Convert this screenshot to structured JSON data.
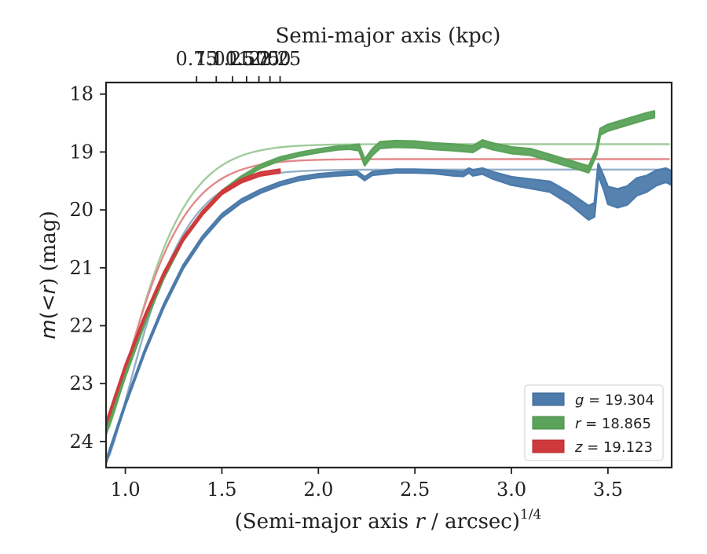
{
  "chart_data": {
    "type": "line",
    "xlabel_prefix": "(Semi-major axis ",
    "xlabel_var": "r",
    "xlabel_suffix": " / arcsec)",
    "xlabel_sup": "1/4",
    "ylabel_m": "m",
    "ylabel_mid": "(<",
    "ylabel_r": "r",
    "ylabel_end": ") (mag)",
    "top_xlabel": "Semi-major axis (kpc)",
    "xlim": [
      0.9,
      3.83
    ],
    "ylim": [
      24.45,
      17.8
    ],
    "x_ticks": [
      1.0,
      1.5,
      2.0,
      2.5,
      3.0,
      3.5
    ],
    "x_tick_labels": [
      "1.0",
      "1.5",
      "2.0",
      "2.5",
      "3.0",
      "3.5"
    ],
    "y_ticks": [
      18,
      19,
      20,
      21,
      22,
      23,
      24
    ],
    "y_tick_labels": [
      "18",
      "19",
      "20",
      "21",
      "22",
      "23",
      "24"
    ],
    "top_ticks": [
      0.75,
      1.0,
      1.25,
      1.5,
      1.75,
      2.0,
      2.25
    ],
    "top_tick_labels": [
      "0.75",
      "1.00",
      "1.25",
      "1.50",
      "1.75",
      "2.00",
      "2.25"
    ],
    "grid": false,
    "legend_position": "lower right",
    "series": [
      {
        "name": "g = 19.304",
        "band": "g",
        "value_text": " = 19.304",
        "color": "#4c7bab",
        "asymptote": 19.304,
        "fit_color": "#94afc8",
        "x": [
          0.9,
          1.0,
          1.1,
          1.2,
          1.3,
          1.4,
          1.5,
          1.6,
          1.7,
          1.8,
          1.9,
          2.0,
          2.1,
          2.2,
          2.24,
          2.28,
          2.4,
          2.5,
          2.6,
          2.7,
          2.75,
          2.78,
          2.8,
          2.85,
          2.9,
          3.0,
          3.1,
          3.2,
          3.3,
          3.4,
          3.43,
          3.45,
          3.48,
          3.5,
          3.55,
          3.6,
          3.65,
          3.7,
          3.75,
          3.8,
          3.83
        ],
        "y": [
          24.35,
          23.35,
          22.45,
          21.65,
          20.98,
          20.48,
          20.1,
          19.85,
          19.68,
          19.55,
          19.46,
          19.41,
          19.38,
          19.36,
          19.46,
          19.37,
          19.33,
          19.33,
          19.34,
          19.37,
          19.38,
          19.32,
          19.36,
          19.33,
          19.4,
          19.5,
          19.55,
          19.6,
          19.8,
          20.05,
          20.0,
          19.3,
          19.55,
          19.75,
          19.8,
          19.75,
          19.6,
          19.55,
          19.45,
          19.4,
          19.45
        ],
        "halfwidth": [
          0.03,
          0.03,
          0.03,
          0.03,
          0.03,
          0.03,
          0.03,
          0.03,
          0.03,
          0.03,
          0.03,
          0.03,
          0.03,
          0.03,
          0.03,
          0.03,
          0.03,
          0.03,
          0.03,
          0.04,
          0.04,
          0.04,
          0.05,
          0.05,
          0.06,
          0.07,
          0.08,
          0.09,
          0.1,
          0.12,
          0.12,
          0.1,
          0.12,
          0.15,
          0.16,
          0.16,
          0.15,
          0.14,
          0.13,
          0.12,
          0.12
        ]
      },
      {
        "name": "r = 18.865",
        "band": "r",
        "value_text": " = 18.865",
        "color": "#5ba35a",
        "asymptote": 18.865,
        "fit_color": "#a0cc9c",
        "x": [
          0.9,
          1.0,
          1.1,
          1.2,
          1.3,
          1.4,
          1.5,
          1.6,
          1.7,
          1.8,
          1.9,
          2.0,
          2.1,
          2.16,
          2.21,
          2.24,
          2.28,
          2.32,
          2.4,
          2.5,
          2.6,
          2.7,
          2.8,
          2.85,
          2.9,
          3.0,
          3.1,
          3.2,
          3.3,
          3.4,
          3.44,
          3.46,
          3.5,
          3.6,
          3.7,
          3.74
        ],
        "y": [
          23.85,
          22.85,
          21.95,
          21.15,
          20.5,
          20.05,
          19.7,
          19.45,
          19.25,
          19.12,
          19.04,
          18.98,
          18.93,
          18.92,
          18.92,
          19.18,
          19.0,
          18.88,
          18.86,
          18.87,
          18.9,
          18.92,
          18.95,
          18.85,
          18.9,
          18.97,
          19.0,
          19.1,
          19.2,
          19.3,
          19.0,
          18.65,
          18.58,
          18.48,
          18.38,
          18.35
        ]
      },
      {
        "name": "z = 19.123",
        "band": "z",
        "value_text": " = 19.123",
        "color": "#d0393b",
        "asymptote": 19.123,
        "fit_color": "#e3888a",
        "x": [
          0.9,
          1.0,
          1.1,
          1.2,
          1.3,
          1.4,
          1.5,
          1.6,
          1.7,
          1.8
        ],
        "y": [
          23.7,
          22.7,
          21.85,
          21.1,
          20.5,
          20.05,
          19.7,
          19.5,
          19.38,
          19.33
        ]
      }
    ]
  }
}
